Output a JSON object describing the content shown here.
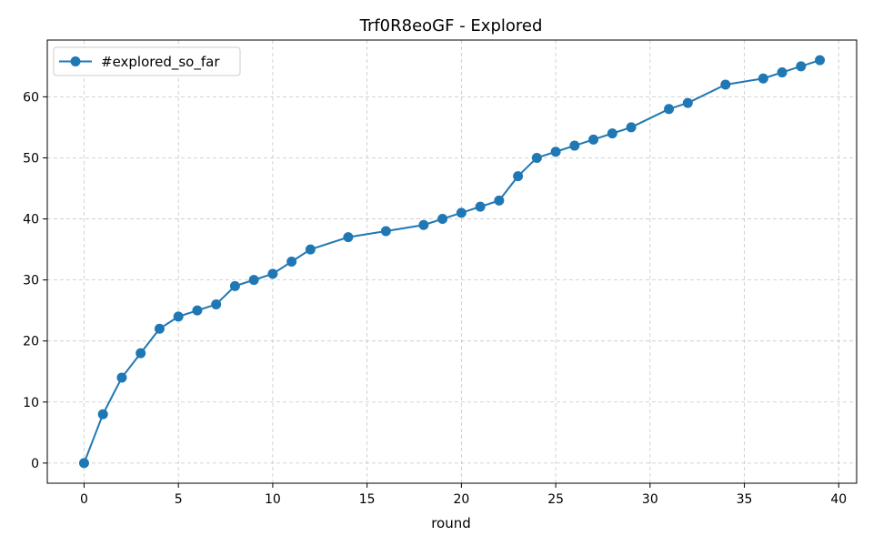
{
  "chart_data": {
    "type": "line",
    "title": "Trf0R8eoGF - Explored",
    "xlabel": "round",
    "ylabel": "",
    "xlim": [
      -1.95,
      40.95
    ],
    "ylim": [
      -3.3,
      69.3
    ],
    "xticks": [
      0,
      5,
      10,
      15,
      20,
      25,
      30,
      35,
      40
    ],
    "yticks": [
      0,
      10,
      20,
      30,
      40,
      50,
      60
    ],
    "grid": true,
    "legend_position": "top-left",
    "series": [
      {
        "name": "#explored_so_far",
        "color": "#1f77b4",
        "marker": "circle",
        "x": [
          0,
          1,
          2,
          3,
          4,
          5,
          6,
          7,
          8,
          9,
          10,
          11,
          12,
          14,
          16,
          18,
          19,
          20,
          21,
          22,
          23,
          24,
          25,
          26,
          27,
          28,
          29,
          31,
          32,
          34,
          36,
          37,
          38,
          39
        ],
        "y": [
          0,
          8,
          14,
          18,
          22,
          24,
          25,
          26,
          29,
          30,
          31,
          33,
          35,
          37,
          38,
          39,
          40,
          41,
          42,
          43,
          47,
          50,
          51,
          52,
          53,
          54,
          55,
          58,
          59,
          62,
          63,
          64,
          65,
          66
        ]
      }
    ]
  }
}
